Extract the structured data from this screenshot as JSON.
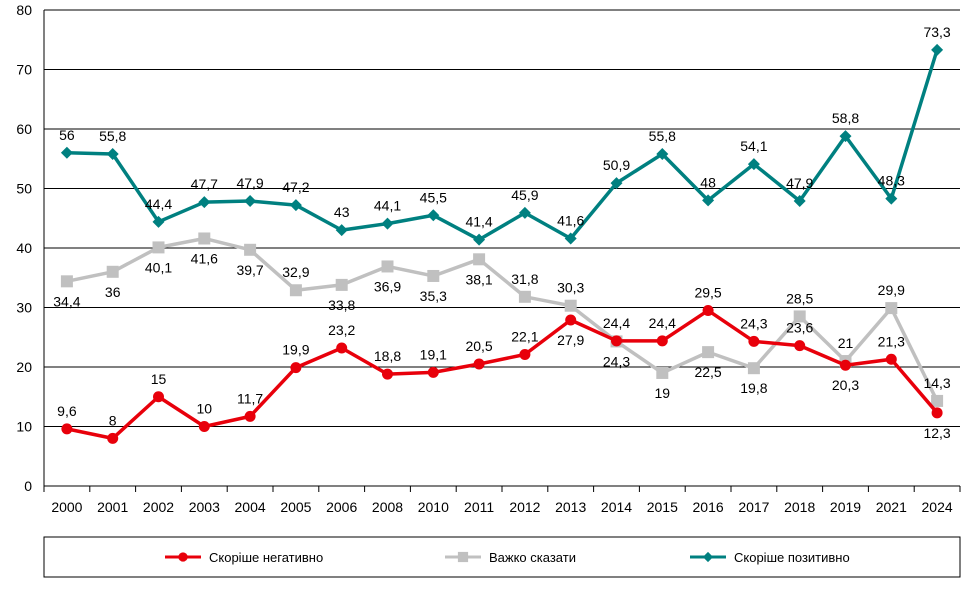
{
  "chart_data": {
    "type": "line",
    "title": "",
    "xlabel": "",
    "ylabel": "",
    "ylim": [
      0,
      80
    ],
    "yticks": [
      0,
      10,
      20,
      30,
      40,
      50,
      60,
      70,
      80
    ],
    "grid": true,
    "legend_position": "bottom",
    "categories": [
      "2000",
      "2001",
      "2002",
      "2003",
      "2004",
      "2005",
      "2006",
      "2008",
      "2010",
      "2011",
      "2012",
      "2013",
      "2014",
      "2015",
      "2016",
      "2017",
      "2018",
      "2019",
      "2021",
      "2024"
    ],
    "series": [
      {
        "name": "Скоріше негативно",
        "color": "#e8000b",
        "marker": "circle",
        "values": [
          9.6,
          8,
          15,
          10,
          11.7,
          19.9,
          23.2,
          18.8,
          19.1,
          20.5,
          22.1,
          27.9,
          24.4,
          24.4,
          29.5,
          24.3,
          23.6,
          20.3,
          21.3,
          12.3
        ],
        "labels": [
          "9,6",
          "8",
          "15",
          "10",
          "11,7",
          "19,9",
          "23,2",
          "18,8",
          "19,1",
          "20,5",
          "22,1",
          "27,9",
          "24,4",
          "24,4",
          "29,5",
          "24,3",
          "23,6",
          "20,3",
          "21,3",
          "12,3"
        ]
      },
      {
        "name": "Важко сказати",
        "color": "#c0c0c0",
        "marker": "square",
        "values": [
          34.4,
          36,
          40.1,
          41.6,
          39.7,
          32.9,
          33.8,
          36.9,
          35.3,
          38.1,
          31.8,
          30.3,
          24.3,
          19,
          22.5,
          19.8,
          28.5,
          21,
          29.9,
          14.3
        ],
        "labels": [
          "34,4",
          "36",
          "40,1",
          "41,6",
          "39,7",
          "32,9",
          "33,8",
          "36,9",
          "35,3",
          "38,1",
          "31,8",
          "30,3",
          "24,3",
          "19",
          "22,5",
          "19,8",
          "28,5",
          "21",
          "29,9",
          "14,3"
        ]
      },
      {
        "name": "Скоріше позитивно",
        "color": "#008080",
        "marker": "diamond",
        "values": [
          56,
          55.8,
          44.4,
          47.7,
          47.9,
          47.2,
          43,
          44.1,
          45.5,
          41.4,
          45.9,
          41.6,
          50.9,
          55.8,
          48,
          54.1,
          47.9,
          58.8,
          48.3,
          73.3
        ],
        "labels": [
          "56",
          "55,8",
          "44,4",
          "47,7",
          "47,9",
          "47,2",
          "43",
          "44,1",
          "45,5",
          "41,4",
          "45,9",
          "41,6",
          "50,9",
          "55,8",
          "48",
          "54,1",
          "47,9",
          "58,8",
          "48,3",
          "73,3"
        ]
      }
    ]
  }
}
